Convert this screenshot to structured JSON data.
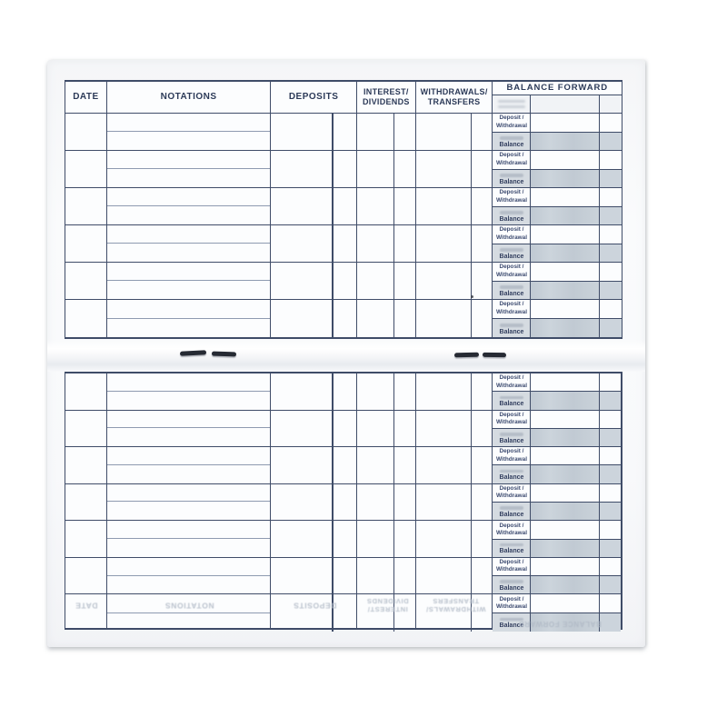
{
  "register": {
    "headers": {
      "date": "DATE",
      "notations": "NOTATIONS",
      "deposits": "DEPOSITS",
      "interest_line1": "INTEREST/",
      "interest_line2": "DIVIDENDS",
      "withdrawals_line1": "WITHDRAWALS/",
      "withdrawals_line2": "TRANSFERS",
      "balance_forward": "BALANCE FORWARD"
    },
    "balance_column": {
      "deposit_withdrawal_line1": "Deposit /",
      "deposit_withdrawal_line2": "Withdrawal",
      "balance_label": "Balance"
    },
    "structure": {
      "top_page_transaction_blocks": 6,
      "bottom_page_transaction_blocks": 7,
      "entries_filled_in": 0
    },
    "ghost_header_mirrored": {
      "date": "DATE",
      "notations": "NOTATIONS",
      "deposits": "DEPOSITS",
      "interest_line1": "INTEREST/",
      "interest_line2": "DIVIDENDS",
      "withdrawals_line1": "WITHDRAWALS/",
      "withdrawals_line2": "TRANSFERS",
      "balance_forward": "BALANCE FORWARD"
    },
    "colors": {
      "grid_line": "#3f4c68",
      "balance_row_shading": "#cfd7de",
      "header_text": "#2c3a58",
      "ghost_text": "#b9c1cc",
      "paper": "#f8f9fb"
    }
  }
}
